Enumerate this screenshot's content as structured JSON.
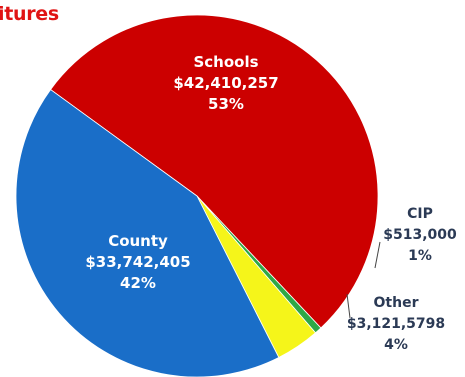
{
  "chart_data": {
    "type": "pie",
    "title": "itures",
    "slices": [
      {
        "name": "Schools",
        "amount": "$42,410,257",
        "percent_label": "53%",
        "value": 53,
        "color": "#cc0000",
        "label_position": "inside"
      },
      {
        "name": "CIP",
        "amount": "$513,000",
        "percent_label": "1%",
        "value": 0.64,
        "color": "#2ea846",
        "label_position": "outside"
      },
      {
        "name": "Other",
        "amount": "$3,121,5798",
        "percent_label": "4%",
        "value": 3.9,
        "color": "#f5f51a",
        "label_position": "outside"
      },
      {
        "name": "County",
        "amount": "$33,742,405",
        "percent_label": "42%",
        "value": 42.46,
        "color": "#1a6ec8",
        "label_position": "inside"
      }
    ]
  }
}
